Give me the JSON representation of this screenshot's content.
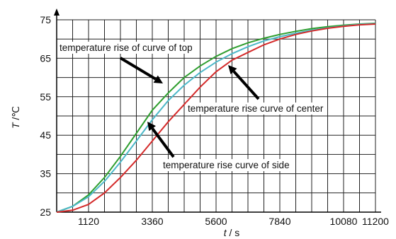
{
  "chart_data": {
    "type": "line",
    "xlabel_var": "t",
    "xlabel_unit": " / s",
    "ylabel_var": "T",
    "ylabel_unit": " /℃",
    "xlim": [
      0,
      11200
    ],
    "ylim": [
      25,
      75
    ],
    "x_ticks": [
      1120,
      3360,
      5600,
      7840,
      10080,
      11200
    ],
    "y_ticks": [
      25,
      35,
      45,
      55,
      65,
      75
    ],
    "grid": true,
    "series": [
      {
        "name": "temperature rise of curve of top",
        "color": "#2e9e2e",
        "x": [
          0,
          560,
          1120,
          1680,
          2240,
          2800,
          3360,
          3920,
          4480,
          5040,
          5600,
          6160,
          6720,
          7280,
          7840,
          8400,
          8960,
          9520,
          10080,
          10640,
          11200
        ],
        "y": [
          25,
          26.5,
          29.5,
          34,
          39.5,
          45.5,
          51.5,
          56,
          60,
          63,
          65.5,
          67.5,
          69,
          70.2,
          71.2,
          72,
          72.7,
          73.2,
          73.6,
          73.9,
          74.1
        ]
      },
      {
        "name": "temperature rise curve of center",
        "color": "#4cb8c8",
        "x": [
          0,
          560,
          1120,
          1680,
          2240,
          2800,
          3360,
          3920,
          4480,
          5040,
          5600,
          6160,
          6720,
          7280,
          7840,
          8400,
          8960,
          9520,
          10080,
          10640,
          11200
        ],
        "y": [
          25,
          26.5,
          29,
          33,
          38,
          43.5,
          49,
          54,
          58,
          61.3,
          64,
          66.2,
          68,
          69.5,
          70.6,
          71.5,
          72.3,
          72.9,
          73.4,
          73.8,
          74
        ]
      },
      {
        "name": "temperature rise curve of side",
        "color": "#d42a2a",
        "x": [
          0,
          560,
          1120,
          1680,
          2240,
          2800,
          3360,
          3920,
          4480,
          5040,
          5600,
          6160,
          6720,
          7280,
          7840,
          8400,
          8960,
          9520,
          10080,
          10640,
          11200
        ],
        "y": [
          25,
          25.5,
          27,
          30,
          34,
          38.5,
          43.5,
          48.5,
          53,
          57.5,
          61.5,
          64.5,
          66.5,
          68.5,
          70,
          71.2,
          72.1,
          72.8,
          73.3,
          73.7,
          73.9
        ]
      }
    ],
    "annotations": [
      {
        "text": "temperature rise of curve of top",
        "series": 0,
        "anchor": "top"
      },
      {
        "text": "temperature rise curve of center",
        "series": 1,
        "anchor": "right"
      },
      {
        "text": "temperature rise curve of side",
        "series": 2,
        "anchor": "bottom"
      }
    ]
  }
}
